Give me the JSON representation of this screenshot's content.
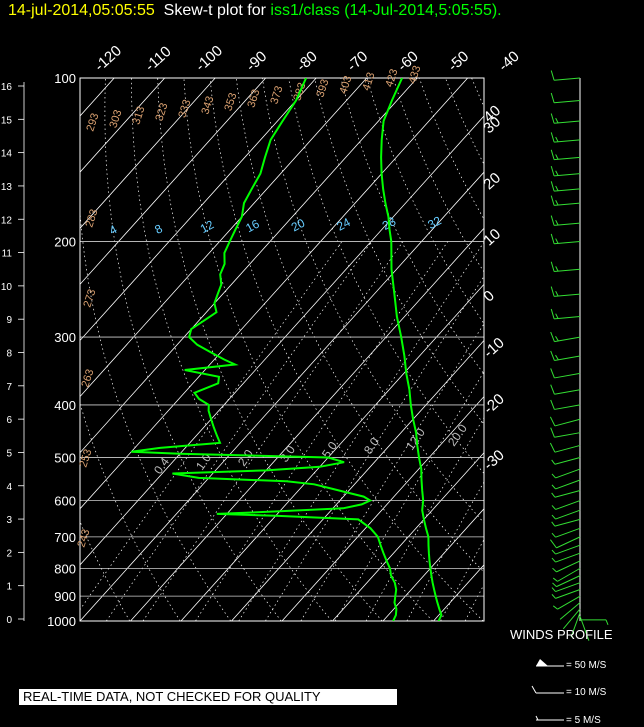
{
  "header": {
    "datetime": "14-jul-2014,05:05:55",
    "title_prefix": "Skew-t plot for",
    "station": "iss1/class (14-Jul-2014,5:05:55)",
    "suffix": "."
  },
  "disclaimer": "REAL-TIME DATA, NOT CHECKED FOR QUALITY",
  "winds_profile": {
    "title": "WINDS PROFILE",
    "legend": [
      "= 50 M/S",
      "= 10 M/S",
      "= 5 M/S"
    ]
  },
  "colors": {
    "background": "#000000",
    "grid": "#ffffff",
    "temperature": "#00ff00",
    "dewpoint": "#00ff00",
    "wind": "#33dd33",
    "mixing_ratio_labels": "#66ccff",
    "theta_labels": "#d9a070",
    "header_date": "#ffff00",
    "header_station": "#00ff00"
  },
  "chart_data": {
    "type": "line",
    "pressure_levels": [
      100,
      200,
      300,
      400,
      500,
      600,
      700,
      800,
      900,
      1000
    ],
    "height_km_labels": [
      "16",
      "15",
      "14",
      "13",
      "12",
      "11",
      "10",
      "9",
      "8",
      "7",
      "6",
      "5",
      "4",
      "3",
      "2",
      "1",
      "0"
    ],
    "isotherm_labels_top": [
      "-120",
      "-110",
      "-100",
      "-90",
      "-80",
      "-70",
      "-60",
      "-50",
      "-40"
    ],
    "isotherm_labels_right": [
      "-30",
      "-20",
      "-10",
      "0",
      "10",
      "20",
      "30",
      "40"
    ],
    "isotherm_values_right": [
      -30,
      -20,
      -10,
      0,
      10,
      20,
      30,
      40
    ],
    "mixing_ratio_labels": [
      "4",
      "8",
      "12",
      "16",
      "20",
      "24",
      "28",
      "32"
    ],
    "mixing_ratio_labels_low": [
      "0.4",
      "1.0",
      "2.0",
      "3.0",
      "5.0",
      "8.0",
      "12.0",
      "20.0"
    ],
    "theta_labels": [
      "293",
      "303",
      "313",
      "323",
      "333",
      "343",
      "353",
      "363",
      "373",
      "383",
      "393",
      "403",
      "413",
      "423",
      "433",
      "283",
      "273",
      "263",
      "253",
      "243"
    ],
    "axis_ranges": {
      "pressure_hPa": [
        1000,
        100
      ],
      "height_km": [
        0,
        16
      ],
      "temperature_C_at_1000": [
        -40,
        40
      ]
    },
    "series": [
      {
        "name": "temperature",
        "points": [
          [
            1000,
            31
          ],
          [
            975,
            30.5
          ],
          [
            950,
            29
          ],
          [
            925,
            27.5
          ],
          [
            900,
            26
          ],
          [
            875,
            24.5
          ],
          [
            850,
            23
          ],
          [
            825,
            21.5
          ],
          [
            800,
            20
          ],
          [
            775,
            18.5
          ],
          [
            750,
            17
          ],
          [
            725,
            15.5
          ],
          [
            700,
            14
          ],
          [
            675,
            12
          ],
          [
            650,
            10
          ],
          [
            625,
            8
          ],
          [
            600,
            6.5
          ],
          [
            575,
            4.5
          ],
          [
            550,
            2.5
          ],
          [
            525,
            0.5
          ],
          [
            500,
            -2
          ],
          [
            475,
            -4.5
          ],
          [
            450,
            -7
          ],
          [
            425,
            -10
          ],
          [
            400,
            -13
          ],
          [
            375,
            -16
          ],
          [
            350,
            -19.5
          ],
          [
            325,
            -23
          ],
          [
            300,
            -27
          ],
          [
            275,
            -31.5
          ],
          [
            250,
            -36
          ],
          [
            225,
            -41
          ],
          [
            200,
            -46
          ],
          [
            190,
            -48.5
          ],
          [
            180,
            -51
          ],
          [
            170,
            -54
          ],
          [
            160,
            -57
          ],
          [
            150,
            -60
          ],
          [
            140,
            -63
          ],
          [
            130,
            -66
          ],
          [
            120,
            -69
          ],
          [
            110,
            -71
          ],
          [
            100,
            -73
          ]
        ]
      },
      {
        "name": "dewpoint",
        "points": [
          [
            1000,
            22
          ],
          [
            975,
            21.5
          ],
          [
            950,
            20.5
          ],
          [
            925,
            19
          ],
          [
            900,
            18
          ],
          [
            875,
            17
          ],
          [
            850,
            15.5
          ],
          [
            825,
            13.5
          ],
          [
            800,
            12
          ],
          [
            775,
            10
          ],
          [
            750,
            8
          ],
          [
            725,
            6
          ],
          [
            700,
            4
          ],
          [
            675,
            1
          ],
          [
            650,
            -3
          ],
          [
            640,
            -20
          ],
          [
            635,
            -32
          ],
          [
            628,
            -20
          ],
          [
            620,
            -8
          ],
          [
            610,
            -5
          ],
          [
            600,
            -4
          ],
          [
            590,
            -6
          ],
          [
            580,
            -10
          ],
          [
            570,
            -14
          ],
          [
            560,
            -18
          ],
          [
            553,
            -24
          ],
          [
            545,
            -42
          ],
          [
            535,
            -48
          ],
          [
            528,
            -30
          ],
          [
            520,
            -20
          ],
          [
            510,
            -16
          ],
          [
            500,
            -20
          ],
          [
            492,
            -50
          ],
          [
            488,
            -60
          ],
          [
            480,
            -55
          ],
          [
            470,
            -44
          ],
          [
            455,
            -46
          ],
          [
            440,
            -48
          ],
          [
            425,
            -50
          ],
          [
            410,
            -52
          ],
          [
            400,
            -53
          ],
          [
            390,
            -56
          ],
          [
            380,
            -58
          ],
          [
            365,
            -55
          ],
          [
            355,
            -56
          ],
          [
            345,
            -64
          ],
          [
            337,
            -55
          ],
          [
            330,
            -58
          ],
          [
            320,
            -62
          ],
          [
            310,
            -66
          ],
          [
            300,
            -69
          ],
          [
            290,
            -70
          ],
          [
            280,
            -69
          ],
          [
            270,
            -68
          ],
          [
            260,
            -70
          ],
          [
            250,
            -71
          ],
          [
            240,
            -72
          ],
          [
            230,
            -74
          ],
          [
            220,
            -75
          ],
          [
            210,
            -77
          ],
          [
            200,
            -78
          ],
          [
            190,
            -79
          ],
          [
            180,
            -80
          ],
          [
            170,
            -82
          ],
          [
            160,
            -83
          ],
          [
            150,
            -84
          ],
          [
            140,
            -86
          ],
          [
            130,
            -88
          ],
          [
            120,
            -89
          ],
          [
            110,
            -90
          ],
          [
            100,
            -92
          ]
        ]
      }
    ],
    "winds": [
      [
        995,
        8,
        90
      ],
      [
        980,
        4,
        160
      ],
      [
        965,
        3,
        200
      ],
      [
        950,
        3,
        220
      ],
      [
        925,
        4,
        230
      ],
      [
        900,
        5,
        240
      ],
      [
        875,
        5,
        250
      ],
      [
        850,
        6,
        250
      ],
      [
        825,
        7,
        245
      ],
      [
        800,
        8,
        240
      ],
      [
        775,
        8,
        245
      ],
      [
        750,
        9,
        250
      ],
      [
        725,
        9,
        250
      ],
      [
        700,
        10,
        245
      ],
      [
        675,
        9,
        250
      ],
      [
        650,
        8,
        255
      ],
      [
        625,
        8,
        250
      ],
      [
        600,
        7,
        250
      ],
      [
        575,
        6,
        255
      ],
      [
        550,
        5,
        250
      ],
      [
        525,
        6,
        250
      ],
      [
        500,
        8,
        255
      ],
      [
        475,
        10,
        255
      ],
      [
        450,
        11,
        260
      ],
      [
        425,
        12,
        255
      ],
      [
        400,
        12,
        260
      ],
      [
        375,
        13,
        260
      ],
      [
        350,
        14,
        260
      ],
      [
        325,
        15,
        260
      ],
      [
        300,
        15,
        260
      ],
      [
        275,
        15,
        265
      ],
      [
        250,
        16,
        265
      ],
      [
        225,
        17,
        265
      ],
      [
        200,
        18,
        265
      ],
      [
        185,
        18,
        265
      ],
      [
        170,
        18,
        265
      ],
      [
        160,
        17,
        265
      ],
      [
        150,
        16,
        265
      ],
      [
        140,
        16,
        265
      ],
      [
        130,
        15,
        265
      ],
      [
        120,
        15,
        265
      ],
      [
        110,
        14,
        265
      ],
      [
        100,
        13,
        265
      ]
    ],
    "grid": true
  }
}
